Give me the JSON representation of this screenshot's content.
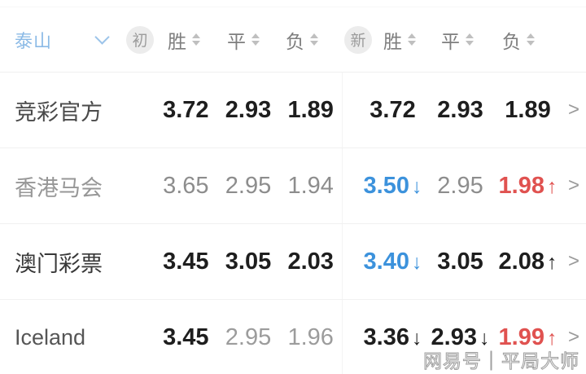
{
  "team_selector": {
    "label": "泰山"
  },
  "header": {
    "early_badge": "初",
    "new_badge": "新",
    "early_cols": [
      "胜",
      "平",
      "负"
    ],
    "new_cols": [
      "胜",
      "平",
      "负"
    ]
  },
  "rows": [
    {
      "name": "竞彩官方",
      "early": [
        "3.72",
        "2.93",
        "1.89"
      ],
      "new_odds": [
        "3.72",
        "2.93",
        "1.89"
      ],
      "new_trends": [
        null,
        null,
        null
      ]
    },
    {
      "name": "香港马会",
      "early": [
        "3.65",
        "2.95",
        "1.94"
      ],
      "new_odds": [
        "3.50",
        "2.95",
        "1.98"
      ],
      "new_trends": [
        "down",
        null,
        "up"
      ]
    },
    {
      "name": "澳门彩票",
      "early": [
        "3.45",
        "3.05",
        "2.03"
      ],
      "new_odds": [
        "3.40",
        "3.05",
        "2.08"
      ],
      "new_trends": [
        "down",
        null,
        "up"
      ]
    },
    {
      "name": "Iceland",
      "early": [
        "3.45",
        "2.95",
        "1.96"
      ],
      "new_odds": [
        "3.36",
        "2.93",
        "1.99"
      ],
      "new_trends": [
        "down",
        "down",
        "up"
      ]
    }
  ],
  "icons": {
    "arrow_down": "↓",
    "arrow_up": "↑",
    "chevron_right": ">"
  },
  "watermark": "网易号｜平局大师",
  "colors": {
    "odds_down_blue": "#3c92dc",
    "odds_up_red": "#e05250",
    "team_blue": "#8bbae6"
  }
}
